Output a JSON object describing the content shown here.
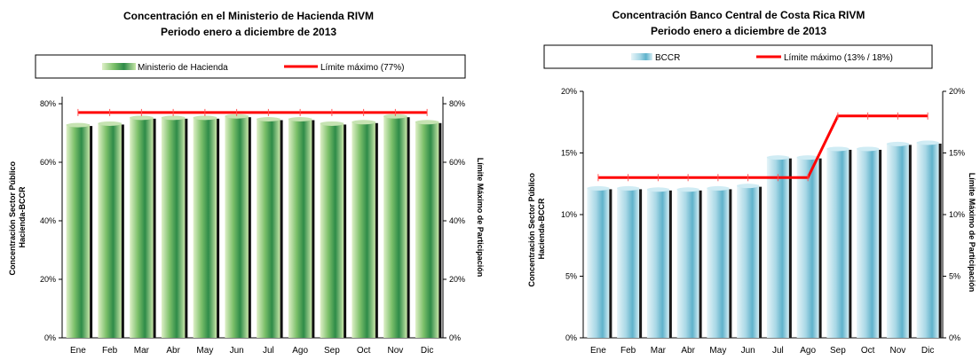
{
  "chart_data": [
    {
      "type": "bar",
      "title": "Concentración en el Ministerio de Hacienda RIVM",
      "subtitle": "Periodo enero a diciembre de 2013",
      "categories": [
        "Ene",
        "Feb",
        "Mar",
        "Abr",
        "May",
        "Jun",
        "Jul",
        "Ago",
        "Sep",
        "Oct",
        "Nov",
        "Dic"
      ],
      "series": [
        {
          "name": "Ministerio de Hacienda",
          "kind": "bar",
          "color": "#3a9a4e",
          "values": [
            73,
            73.5,
            75.5,
            75.5,
            75.5,
            76,
            75,
            75,
            73.5,
            74,
            76,
            74
          ]
        },
        {
          "name": "Límite máximo (77%)",
          "kind": "line",
          "color": "#ff0000",
          "values": [
            77,
            77,
            77,
            77,
            77,
            77,
            77,
            77,
            77,
            77,
            77,
            77
          ]
        }
      ],
      "ylabel": "Concentración Sector Público Hacienda-BCCR",
      "y2label": "Límite Máximo de Participación",
      "ylim": [
        0,
        80
      ],
      "yticks": [
        "0%",
        "20%",
        "40%",
        "60%",
        "80%"
      ],
      "y2ticks": [
        "0%",
        "20%",
        "40%",
        "60%",
        "80%"
      ],
      "grid": false,
      "legend": "top"
    },
    {
      "type": "bar",
      "title": "Concentración Banco Central de Costa Rica RIVM",
      "subtitle": "Periodo enero a diciembre de 2013",
      "categories": [
        "Ene",
        "Feb",
        "Mar",
        "Abr",
        "May",
        "Jun",
        "Jul",
        "Ago",
        "Sep",
        "Oct",
        "Nov",
        "Dic"
      ],
      "series": [
        {
          "name": "BCCR",
          "kind": "bar",
          "color": "#7fc3d6",
          "values": [
            12.2,
            12.2,
            12.1,
            12.1,
            12.2,
            12.4,
            14.7,
            14.7,
            15.4,
            15.4,
            15.8,
            15.9
          ]
        },
        {
          "name": "Límite máximo (13% / 18%)",
          "kind": "line",
          "color": "#ff0000",
          "values": [
            13,
            13,
            13,
            13,
            13,
            13,
            13,
            13,
            18,
            18,
            18,
            18
          ]
        }
      ],
      "ylabel": "Concentración Sector Público Hacienda-BCCR",
      "y2label": "Límite Máximo de Participación",
      "ylim": [
        0,
        20
      ],
      "yticks": [
        "0%",
        "5%",
        "10%",
        "15%",
        "20%"
      ],
      "y2ticks": [
        "0%",
        "5%",
        "10%",
        "15%",
        "20%"
      ],
      "grid": false,
      "legend": "top"
    }
  ]
}
